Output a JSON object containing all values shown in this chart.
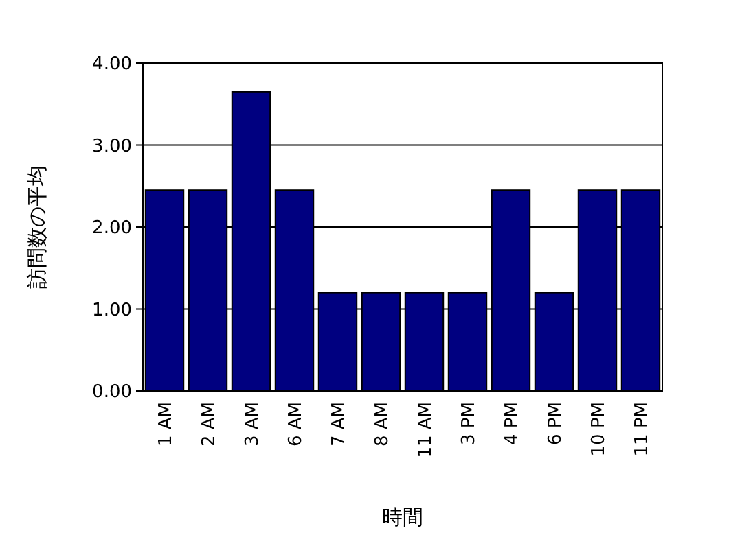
{
  "chart_data": {
    "type": "bar",
    "xlabel": "時間",
    "ylabel": "訪問数の平均",
    "categories": [
      "1 AM",
      "2 AM",
      "3 AM",
      "6 AM",
      "7 AM",
      "8 AM",
      "11 AM",
      "3 PM",
      "4 PM",
      "6 PM",
      "10 PM",
      "11 PM"
    ],
    "values": [
      2.45,
      2.45,
      3.65,
      2.45,
      1.2,
      1.2,
      1.2,
      1.2,
      2.45,
      1.2,
      2.45,
      2.45
    ],
    "color": "#000080",
    "ylim": [
      0,
      4
    ],
    "yticks": [
      {
        "value": 0,
        "label": "0.00"
      },
      {
        "value": 1,
        "label": "1.00"
      },
      {
        "value": 2,
        "label": "2.00"
      },
      {
        "value": 3,
        "label": "3.00"
      },
      {
        "value": 4,
        "label": "4.00"
      }
    ],
    "grid": "y"
  }
}
